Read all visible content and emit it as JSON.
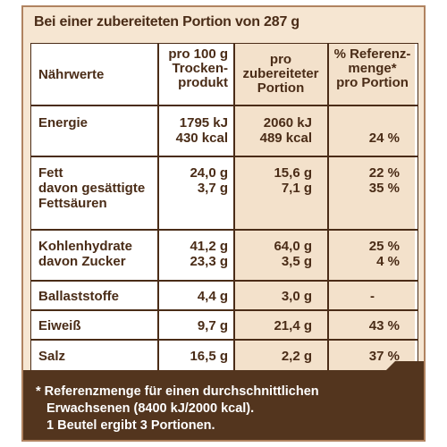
{
  "title": "Bei einer zubereiteten Portion von 287 g",
  "headers": {
    "nutrients": "Nährwerte",
    "per100": "pro 100 g\nTrocken-\nprodukt",
    "perPortion": "pro\nzubereiteter\nPortion",
    "reference": "% Referenz-\nmenge*\npro Portion"
  },
  "rows": [
    {
      "label": "Energie",
      "per100": "1795 kJ\n430 kcal",
      "portion": "2060 kJ\n489 kcal",
      "ref": "\n24 %"
    },
    {
      "label": "Fett\ndavon gesättigte\nFettsäuren",
      "per100": "24,0 g\n3,7 g",
      "portion": "15,6 g\n7,1 g",
      "ref": "22 %\n35 %"
    },
    {
      "label": "Kohlenhydrate\ndavon Zucker",
      "per100": "41,2 g\n23,3 g",
      "portion": "64,0 g\n3,5 g",
      "ref": "25 %\n4 %"
    },
    {
      "label": "Ballaststoffe",
      "per100": "4,4 g",
      "portion": "3,0 g",
      "ref": "-"
    },
    {
      "label": "Eiweiß",
      "per100": "9,7 g",
      "portion": "21,4 g",
      "ref": "43 %"
    },
    {
      "label": "Salz",
      "per100": "16,5 g",
      "portion": "2,2 g",
      "ref": "37 %"
    }
  ],
  "footnote": {
    "line1": "* Referenzmenge für einen durchschnittlichen",
    "line2": "Erwachsenen (8400 kJ/2000 kcal).",
    "line3": "1 Beutel ergibt 3 Portionen."
  },
  "colors": {
    "panel": "#f6e6d2",
    "dark_brown": "#4a2c17",
    "footer": "#53351e",
    "column_tint": "#f3e1cb"
  }
}
